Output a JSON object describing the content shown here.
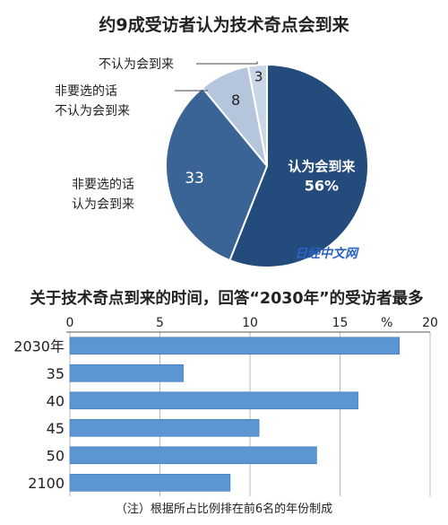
{
  "chart_data": [
    {
      "type": "pie",
      "title": "约9成受访者认为技术奇点会到来",
      "unit": "%",
      "slices": [
        {
          "label": "认为会到来",
          "value": 56,
          "value_label": "56%",
          "color": "#234c7c"
        },
        {
          "label_lines": [
            "非要选的话",
            "认为会到来"
          ],
          "value": 33,
          "value_label": "33",
          "color": "#3a6396"
        },
        {
          "label_lines": [
            "非要选的话",
            "不认为会到来"
          ],
          "value": 8,
          "value_label": "8",
          "color": "#b5c6dc"
        },
        {
          "label": "不认为会到来",
          "value": 3,
          "value_label": "3",
          "color": "#c9d6e6"
        }
      ]
    },
    {
      "type": "bar",
      "orientation": "horizontal",
      "title": "关于技术奇点到来的时间，回答“2030年”的受访者最多",
      "categories": [
        "2030年",
        "35",
        "40",
        "45",
        "50",
        "2100"
      ],
      "values": [
        18.3,
        6.3,
        16.0,
        10.5,
        13.7,
        8.9
      ],
      "xlim": [
        0,
        20
      ],
      "xticks": [
        0,
        5,
        10,
        15,
        20
      ],
      "unit_label": "%",
      "grid": true,
      "bar_color": "#5b95d2",
      "note": "（注）根据所占比例排在前6名的年份制成"
    }
  ],
  "watermark": "日经中文网"
}
